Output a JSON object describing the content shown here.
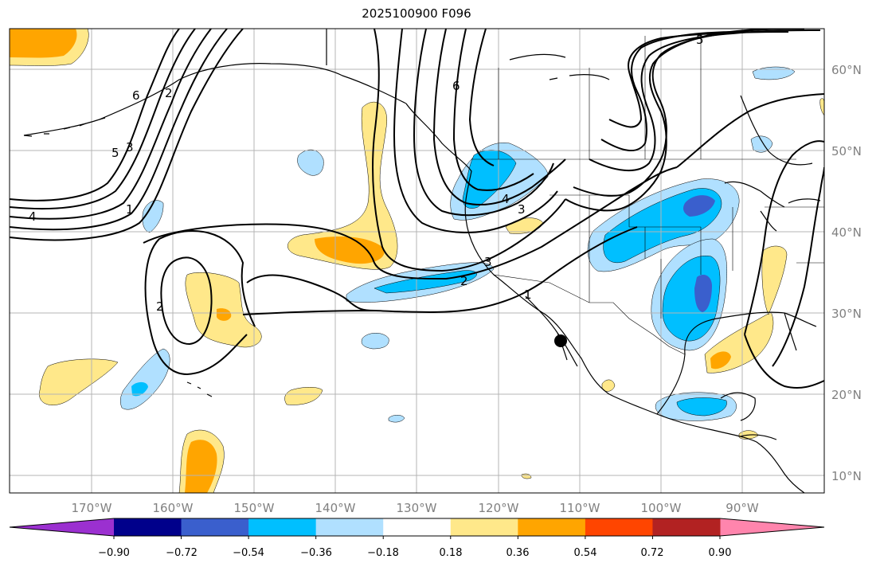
{
  "title": "2025100900 F096",
  "longitude_labels": [
    "170°W",
    "160°W",
    "150°W",
    "140°W",
    "130°W",
    "120°W",
    "110°W",
    "100°W",
    "90°W"
  ],
  "latitude_labels": [
    "60°N",
    "50°N",
    "40°N",
    "30°N",
    "20°N",
    "10°N"
  ],
  "colorbar": {
    "tick_labels": [
      "−0.90",
      "−0.72",
      "−0.54",
      "−0.36",
      "−0.18",
      "0.18",
      "0.36",
      "0.54",
      "0.72",
      "0.90"
    ],
    "colors": [
      "#9b30d0",
      "#00008b",
      "#3a5fcd",
      "#00bfff",
      "#b0e0ff",
      "#ffffff",
      "#ffe88a",
      "#ffa500",
      "#ff4500",
      "#b22222",
      "#ff85ad"
    ]
  },
  "contour_labels": [
    "4",
    "5",
    "3",
    "6",
    "2",
    "1",
    "4",
    "3",
    "2",
    "6",
    "3",
    "2",
    "1",
    "5"
  ],
  "colors": {
    "light_blue": "#b0e0ff",
    "sky_blue": "#00bfff",
    "royal_blue": "#3a5fcd",
    "light_yellow": "#ffe88a",
    "orange": "#ffa500",
    "grid": "#b4b4b4",
    "marker": "#000000"
  },
  "marker": {
    "name": "station-point",
    "lon": -112,
    "lat": 26.5
  }
}
